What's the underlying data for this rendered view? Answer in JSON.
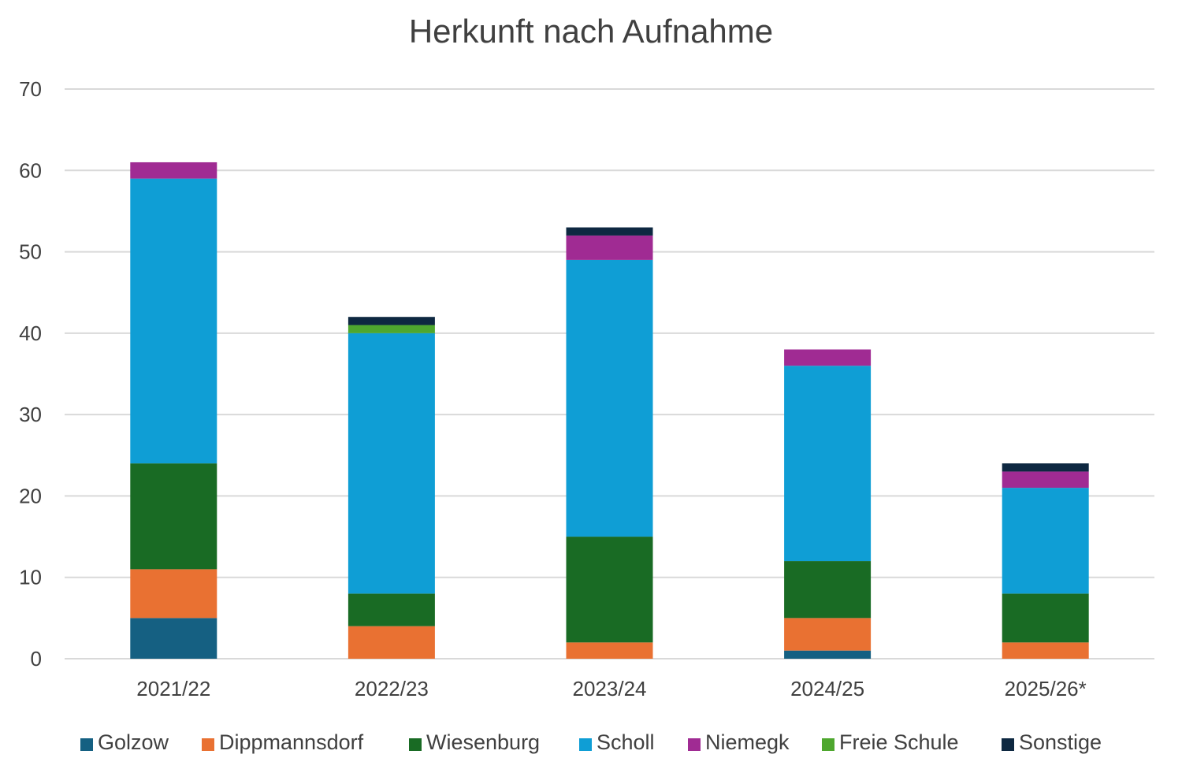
{
  "chart_data": {
    "type": "bar",
    "stacked": true,
    "title": "Herkunft nach Aufnahme",
    "xlabel": "",
    "ylabel": "",
    "ylim": [
      0,
      70
    ],
    "yticks": [
      0,
      10,
      20,
      30,
      40,
      50,
      60,
      70
    ],
    "grid": true,
    "legend_position": "bottom",
    "categories": [
      "2021/22",
      "2022/23",
      "2023/24",
      "2024/25",
      "2025/26*"
    ],
    "series": [
      {
        "name": "Golzow",
        "color": "#156082",
        "values": [
          5,
          0,
          0,
          1,
          0
        ]
      },
      {
        "name": "Dippmannsdorf",
        "color": "#E97132",
        "values": [
          6,
          4,
          2,
          4,
          2
        ]
      },
      {
        "name": "Wiesenburg",
        "color": "#196B24",
        "values": [
          13,
          4,
          13,
          7,
          6
        ]
      },
      {
        "name": "Scholl",
        "color": "#0F9ED5",
        "values": [
          35,
          32,
          34,
          24,
          13
        ]
      },
      {
        "name": "Niemegk",
        "color": "#A02B93",
        "values": [
          2,
          0,
          3,
          2,
          2
        ]
      },
      {
        "name": "Freie Schule",
        "color": "#4EA72E",
        "values": [
          0,
          1,
          0,
          0,
          0
        ]
      },
      {
        "name": "Sonstige",
        "color": "#0E2841",
        "values": [
          0,
          1,
          1,
          0,
          1
        ]
      }
    ]
  }
}
